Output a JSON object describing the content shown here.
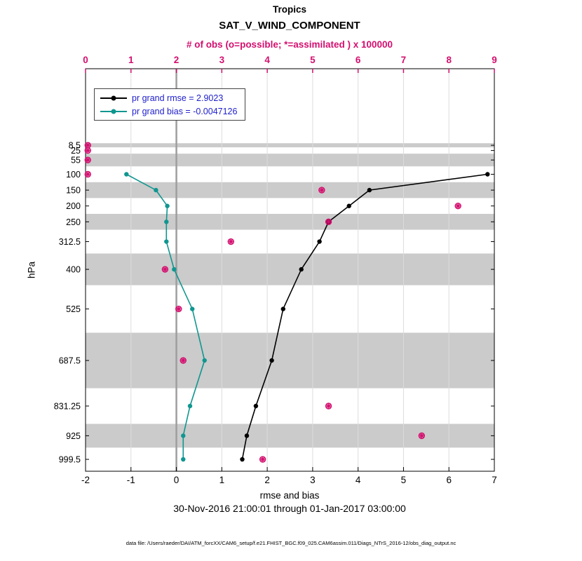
{
  "header": {
    "region_title": "Tropics",
    "main_title": "SAT_V_WIND_COMPONENT",
    "obs_axis_label": "# of obs (o=possible; *=assimilated ) x 100000"
  },
  "legend": {
    "text_color": "#2020cc",
    "entries": [
      {
        "label": "pr grand rmse = 2.9023",
        "color": "#000000"
      },
      {
        "label": "pr grand bias = -0.0047126",
        "color": "#109690"
      }
    ]
  },
  "footer": {
    "x_axis_label": "rmse and bias",
    "timespan": "30-Nov-2016 21:00:01 through 01-Jan-2017 03:00:00",
    "data_file": "data file: /Users/raeder/DAI/ATM_forcXX/CAM6_setup/f.e21.FHIST_BGC.f09_025.CAM6assim.011/Diags_NTrS_2016-12/obs_diag_output.nc"
  },
  "chart_data": {
    "type": "line",
    "title": "Tropics SAT_V_WIND_COMPONENT",
    "ylabel": "hPa",
    "xlabel": "rmse and bias",
    "band_color": "#cbcbcb",
    "zero_line_color": "#9e9e9e",
    "x_bottom_axis": {
      "min": -2,
      "max": 7,
      "ticks": [
        -2,
        -1,
        0,
        1,
        2,
        3,
        4,
        5,
        6,
        7
      ],
      "color": "#000000"
    },
    "x_top_axis": {
      "min": 0,
      "max": 9,
      "ticks": [
        0,
        1,
        2,
        3,
        4,
        5,
        6,
        7,
        8,
        9
      ],
      "color": "#d40f6f",
      "label": "# of obs (o=possible; *=assimilated ) x 100000"
    },
    "y_axis": {
      "label": "hPa",
      "direction": "reversed",
      "levels": [
        8.5,
        25,
        55,
        100,
        150,
        200,
        250,
        312.5,
        400,
        525,
        687.5,
        831.25,
        925,
        999.5
      ],
      "ylim_pressure": [
        -233,
        1037
      ]
    },
    "shaded_bands_pressure": [
      [
        2,
        15
      ],
      [
        35,
        75
      ],
      [
        125,
        175
      ],
      [
        225,
        275
      ],
      [
        350,
        450
      ],
      [
        600,
        775
      ],
      [
        887.5,
        962.5
      ]
    ],
    "series": [
      {
        "name": "pr grand rmse",
        "stat": 2.9023,
        "color": "#000000",
        "levels_hpa": [
          100,
          150,
          200,
          250,
          312.5,
          400,
          525,
          687.5,
          831.25,
          925,
          999.5
        ],
        "values": [
          6.85,
          4.25,
          3.8,
          3.35,
          3.15,
          2.75,
          2.35,
          2.1,
          1.75,
          1.55,
          1.45
        ]
      },
      {
        "name": "pr grand bias",
        "stat": -0.0047126,
        "color": "#109690",
        "levels_hpa": [
          100,
          150,
          200,
          250,
          312.5,
          400,
          525,
          687.5,
          831.25,
          925,
          999.5
        ],
        "values": [
          -1.1,
          -0.45,
          -0.2,
          -0.22,
          -0.22,
          -0.05,
          0.35,
          0.62,
          0.3,
          0.15,
          0.15
        ]
      }
    ],
    "obs_counts_x100000": {
      "color": "#d40f6f",
      "levels_hpa": [
        8.5,
        25,
        55,
        100,
        150,
        200,
        250,
        312.5,
        400,
        525,
        687.5,
        831.25,
        925,
        999.5
      ],
      "possible": [
        0.05,
        0.05,
        0.05,
        0.05,
        5.2,
        8.2,
        5.35,
        3.2,
        1.75,
        2.05,
        2.15,
        5.35,
        7.4,
        3.9
      ],
      "assimilated": [
        0.05,
        0.05,
        0.05,
        0.05,
        5.2,
        8.2,
        5.35,
        3.2,
        1.75,
        2.05,
        2.15,
        5.35,
        7.4,
        3.9
      ]
    }
  }
}
